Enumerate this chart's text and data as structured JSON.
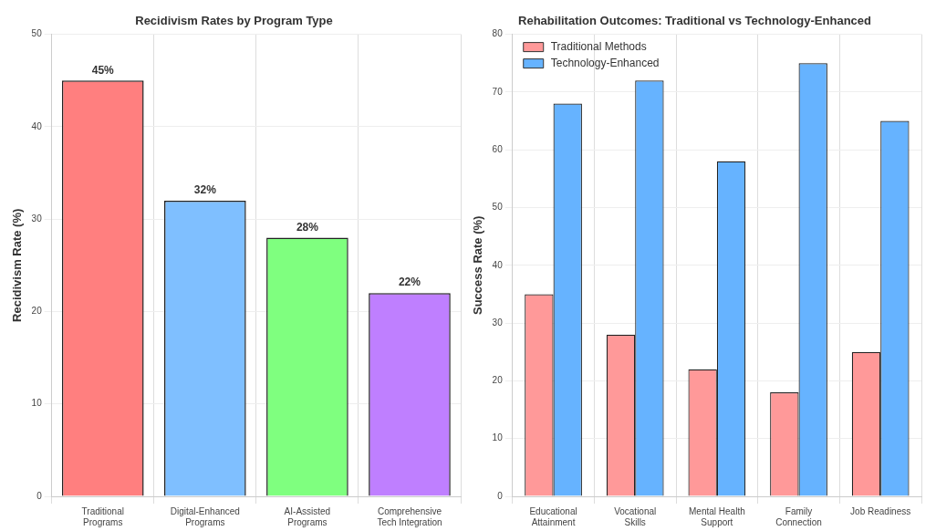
{
  "chart_data": [
    {
      "type": "bar",
      "title": "Recidivism Rates by Program Type",
      "ylabel": "Recidivism Rate (%)",
      "categories": [
        "Traditional\nPrograms",
        "Digital-Enhanced\nPrograms",
        "AI-Assisted\nPrograms",
        "Comprehensive\nTech Integration"
      ],
      "values": [
        45,
        32,
        28,
        22
      ],
      "colors": [
        "#ff7f7f",
        "#7fbfff",
        "#7fff7f",
        "#bf7fff"
      ],
      "value_labels": [
        "45%",
        "32%",
        "28%",
        "22%"
      ],
      "ylim": [
        0,
        50
      ],
      "yticks": [
        0,
        10,
        20,
        30,
        40,
        50
      ],
      "grid": true
    },
    {
      "type": "bar",
      "title": "Rehabilitation Outcomes: Traditional vs Technology-Enhanced",
      "ylabel": "Success Rate (%)",
      "categories": [
        "Educational\nAttainment",
        "Vocational\nSkills",
        "Mental Health\nSupport",
        "Family\nConnection",
        "Job Readiness"
      ],
      "series": [
        {
          "name": "Traditional Methods",
          "color": "#ff9999",
          "values": [
            35,
            28,
            22,
            18,
            25
          ]
        },
        {
          "name": "Technology-Enhanced",
          "color": "#66b3ff",
          "values": [
            68,
            72,
            58,
            75,
            65
          ]
        }
      ],
      "ylim": [
        0,
        80
      ],
      "yticks": [
        0,
        10,
        20,
        30,
        40,
        50,
        60,
        70,
        80
      ],
      "grid": true,
      "legend": "top left"
    }
  ]
}
